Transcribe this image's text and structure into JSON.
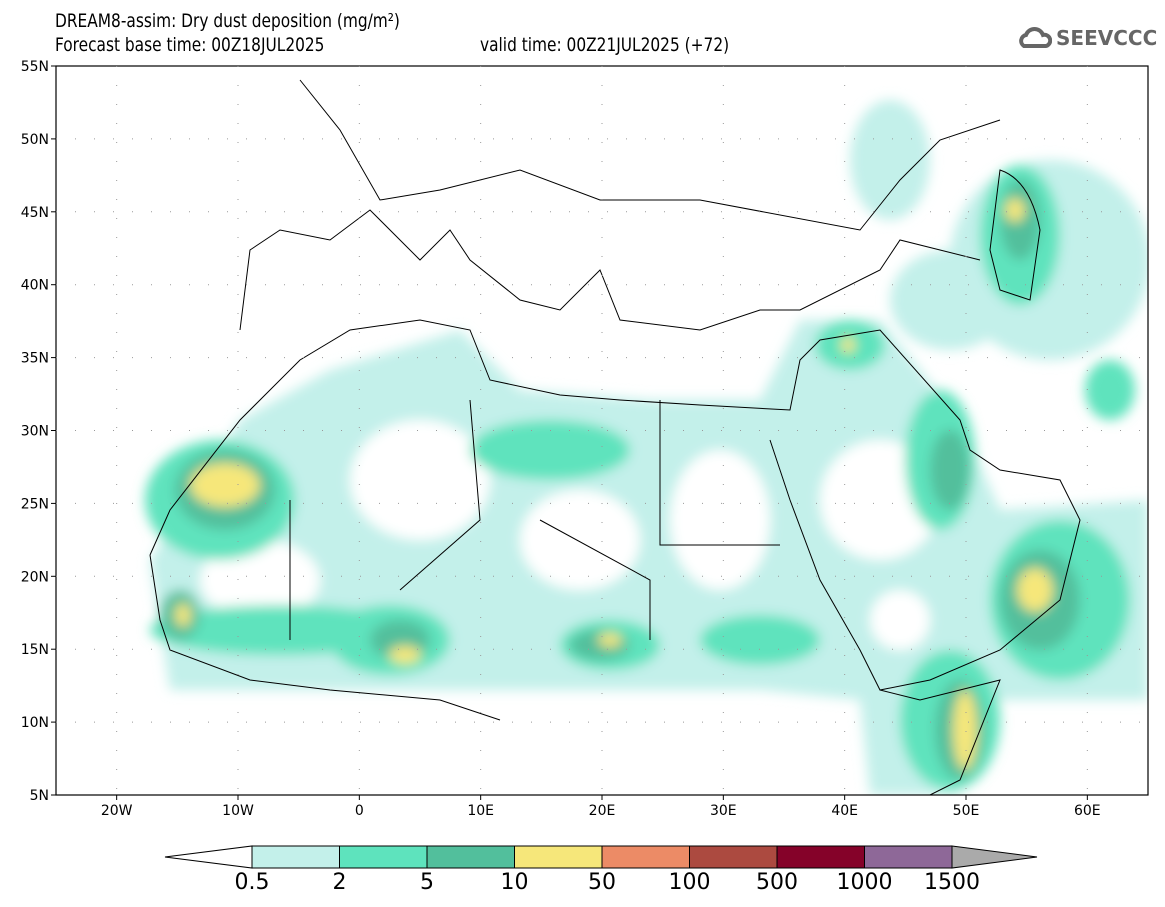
{
  "title": "DREAM8-assim: Dry dust deposition (mg/m²)",
  "base_time": "Forecast base time: 00Z18JUL2025",
  "valid_time": "valid time: 00Z21JUL2025 (+72)",
  "logo": "SEEVCCC",
  "lat_labels": [
    "55N",
    "50N",
    "45N",
    "40N",
    "35N",
    "30N",
    "25N",
    "20N",
    "15N",
    "10N",
    "5N"
  ],
  "lon_labels": [
    "20W",
    "10W",
    "0",
    "10E",
    "20E",
    "30E",
    "40E",
    "50E",
    "60E"
  ],
  "legend": {
    "labels": [
      "0.5",
      "2",
      "5",
      "10",
      "50",
      "100",
      "500",
      "1000",
      "1500"
    ],
    "colors": [
      "#c3f0ea",
      "#5ee3bd",
      "#52bf9c",
      "#f6e77a",
      "#ec8b66",
      "#ac4a40",
      "#850229",
      "#8e6898"
    ],
    "over_color": "#aaaaaa",
    "under_color": "#ffffff"
  }
}
